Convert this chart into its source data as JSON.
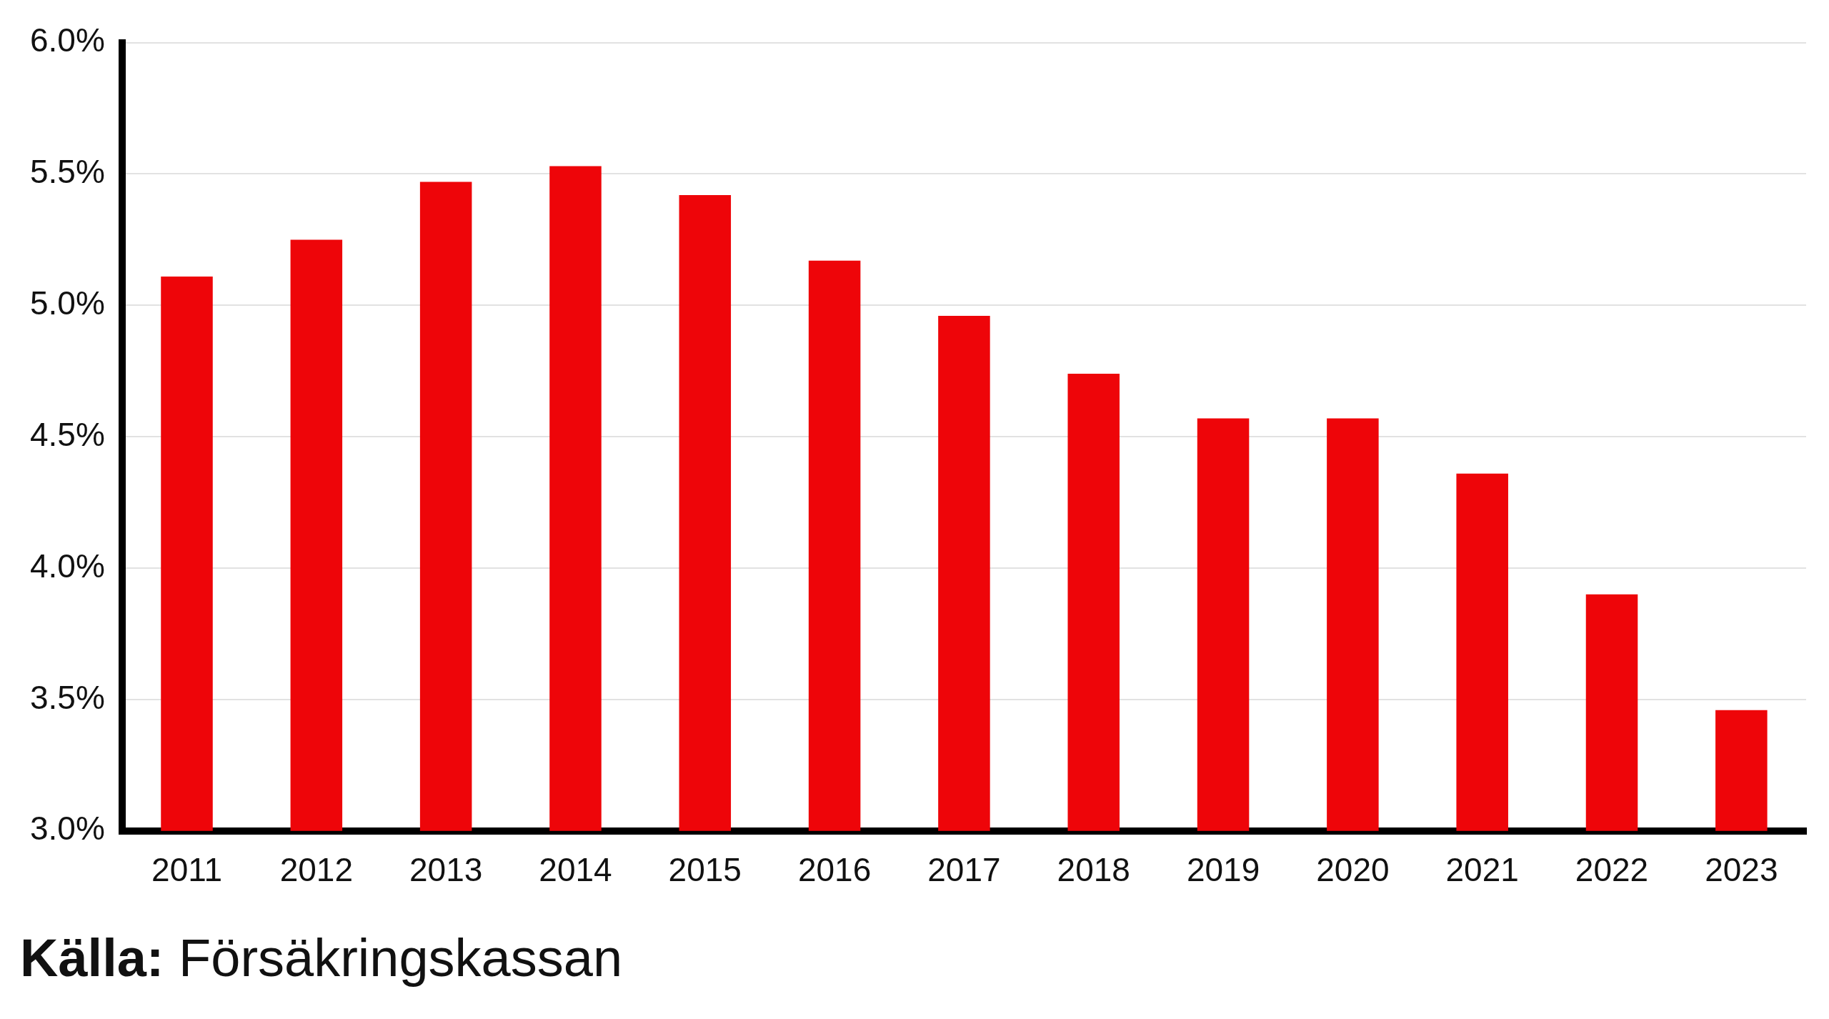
{
  "chart_data": {
    "type": "bar",
    "categories": [
      "2011",
      "2012",
      "2013",
      "2014",
      "2015",
      "2016",
      "2017",
      "2018",
      "2019",
      "2020",
      "2021",
      "2022",
      "2023"
    ],
    "values": [
      5.11,
      5.25,
      5.47,
      5.53,
      5.42,
      5.17,
      4.96,
      4.74,
      4.57,
      4.57,
      4.36,
      3.9,
      3.46
    ],
    "color": "#ee0509",
    "ylim": [
      3,
      6
    ],
    "yticks": [
      {
        "value": 3,
        "label": "3.0%"
      },
      {
        "value": 3.5,
        "label": "3.5%"
      },
      {
        "value": 4,
        "label": "4.0%"
      },
      {
        "value": 4.5,
        "label": "4.5%"
      },
      {
        "value": 5,
        "label": "5.0%"
      },
      {
        "value": 5.5,
        "label": "5.5%"
      },
      {
        "value": 6,
        "label": "6.0%"
      }
    ],
    "grid": "y",
    "legend": false,
    "annotations": [
      "Källa: Försäkringskassan"
    ]
  }
}
